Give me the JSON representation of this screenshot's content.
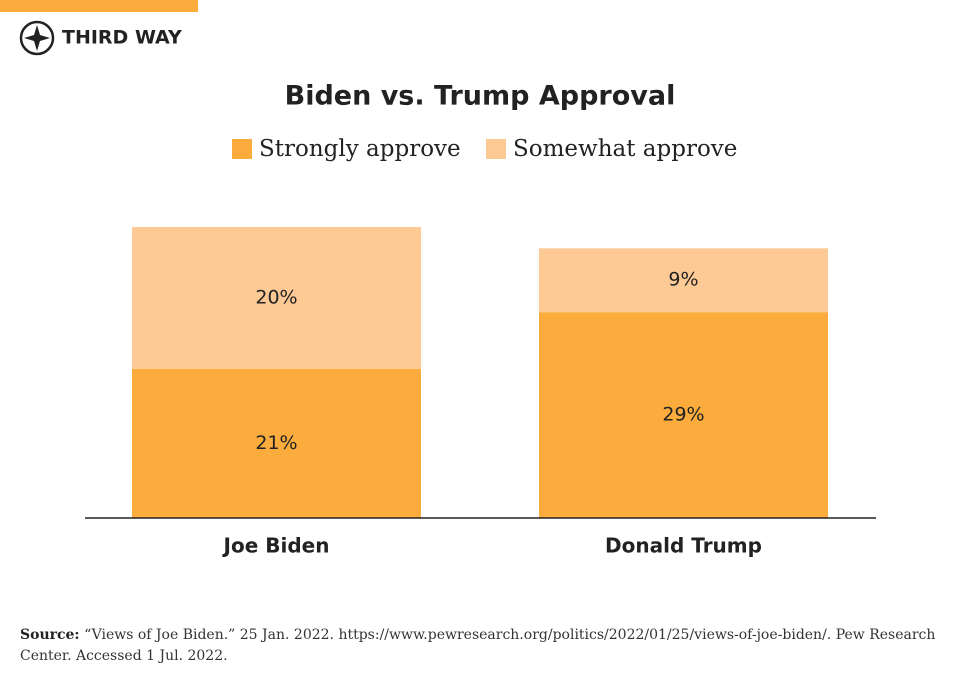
{
  "header": {
    "logo": "THIRD WAY"
  },
  "chart_data": {
    "type": "stacked-bar",
    "title": "Biden vs. Trump Approval",
    "categories": [
      "Joe Biden",
      "Donald Trump"
    ],
    "series": [
      {
        "name": "Strongly approve",
        "color": "#fcac3c",
        "values": [
          21,
          29
        ],
        "value_labels": [
          "21%",
          "29%"
        ]
      },
      {
        "name": "Somewhat approve",
        "color": "#fdc995",
        "values": [
          20,
          9
        ],
        "value_labels": [
          "20%",
          "9%"
        ]
      }
    ]
  },
  "footer": {
    "source_label": "Source:",
    "source": "“Views of Joe Biden.” 25 Jan. 2022. https://www.pewresearch.org/politics/2022/01/25/views-of-joe-biden/. Pew Research Center. Accessed 1 Jul. 2022."
  }
}
